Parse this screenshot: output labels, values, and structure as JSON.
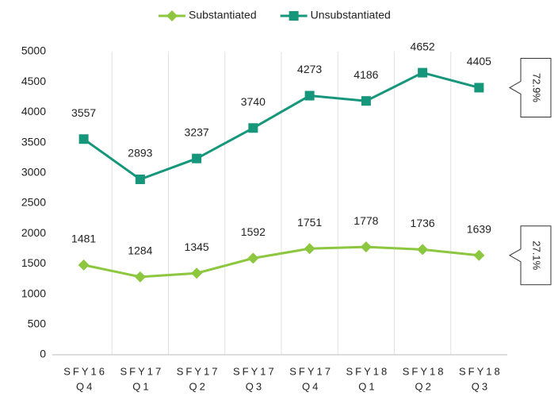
{
  "chart_data": {
    "type": "line",
    "categories": [
      [
        "SFY16",
        "Q4"
      ],
      [
        "SFY17",
        "Q1"
      ],
      [
        "SFY17",
        "Q2"
      ],
      [
        "SFY17",
        "Q3"
      ],
      [
        "SFY17",
        "Q4"
      ],
      [
        "SFY18",
        "Q1"
      ],
      [
        "SFY18",
        "Q2"
      ],
      [
        "SFY18",
        "Q3"
      ]
    ],
    "series": [
      {
        "name": "Substantiated",
        "color": "#8dc63f",
        "marker": "diamond",
        "values": [
          1481,
          1284,
          1345,
          1592,
          1751,
          1778,
          1736,
          1639
        ],
        "annotation": "27.1%"
      },
      {
        "name": "Unsubstantiated",
        "color": "#16967a",
        "marker": "square",
        "values": [
          3557,
          2893,
          3237,
          3740,
          4273,
          4186,
          4652,
          4405
        ],
        "annotation": "72.9%"
      }
    ],
    "ylim": [
      0,
      5000
    ],
    "yticks": [
      0,
      500,
      1000,
      1500,
      2000,
      2500,
      3000,
      3500,
      4000,
      4500,
      5000
    ],
    "grid": true,
    "legend": "top"
  }
}
